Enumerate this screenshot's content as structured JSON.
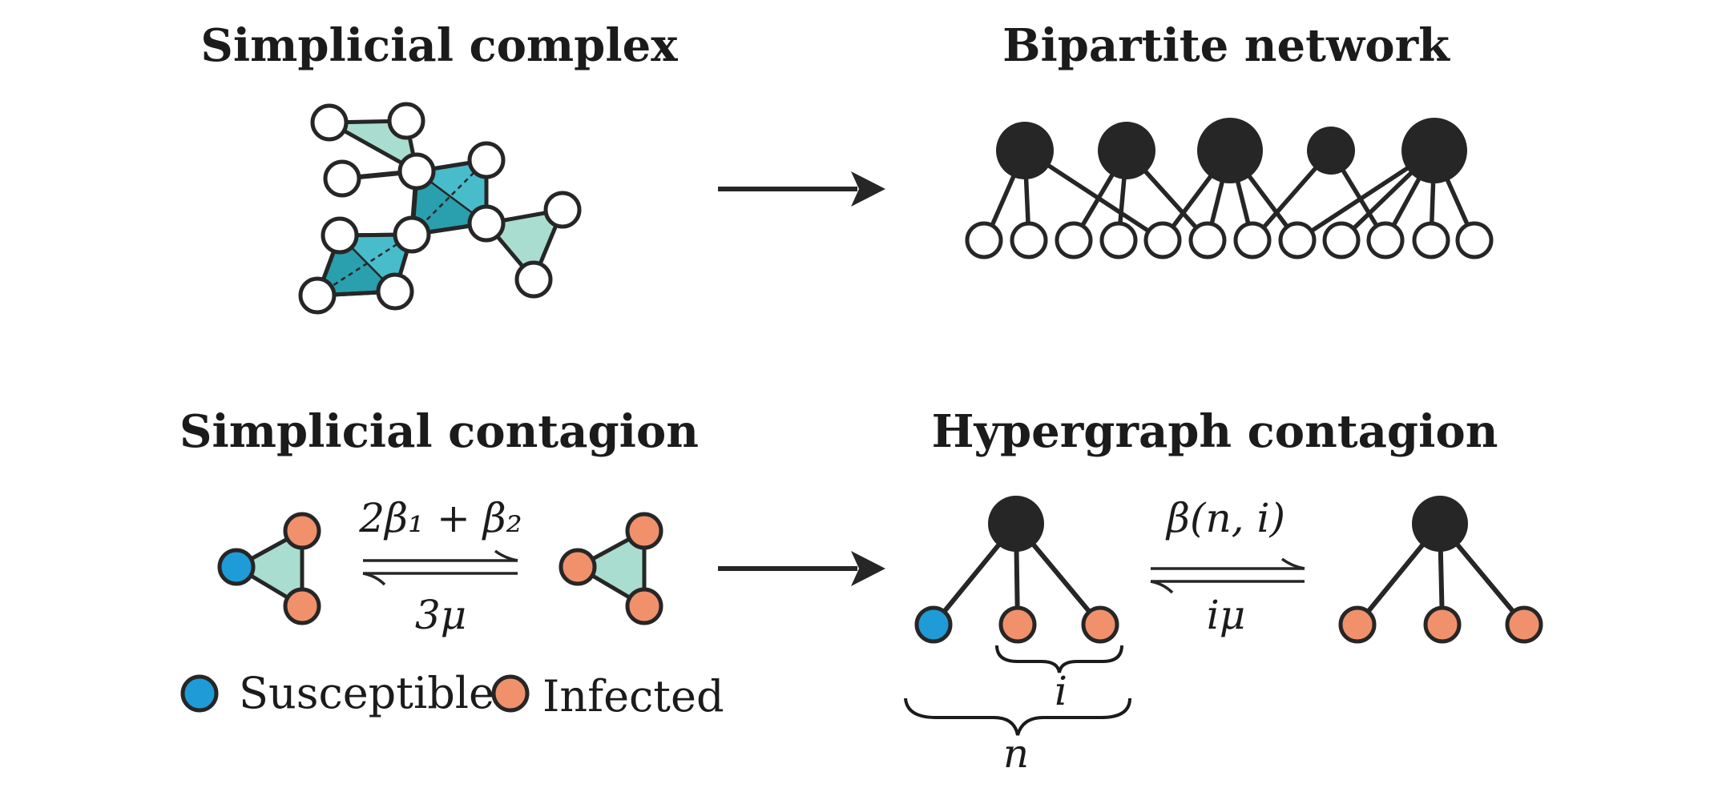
{
  "panels": {
    "simplicial_complex": {
      "title": "Simplicial complex"
    },
    "bipartite_network": {
      "title": "Bipartite network"
    },
    "simplicial_contagion": {
      "title": "Simplicial contagion",
      "forward_rate": "2β₁ + β₂",
      "backward_rate": "3μ"
    },
    "hypergraph_contagion": {
      "title": "Hypergraph contagion",
      "forward_rate": "β(n, i)",
      "backward_rate": "iμ",
      "brace_small_label": "i",
      "brace_large_label": "n"
    }
  },
  "legend": {
    "susceptible": "Susceptible",
    "infected": "Infected"
  },
  "colors": {
    "susceptible": "#1f9bd7",
    "infected": "#f0916b",
    "triangle_fill": "#a9ddd0",
    "tetra_fill": "#2a9fae",
    "tetra_face": "#48bccb",
    "ink": "#262626"
  }
}
